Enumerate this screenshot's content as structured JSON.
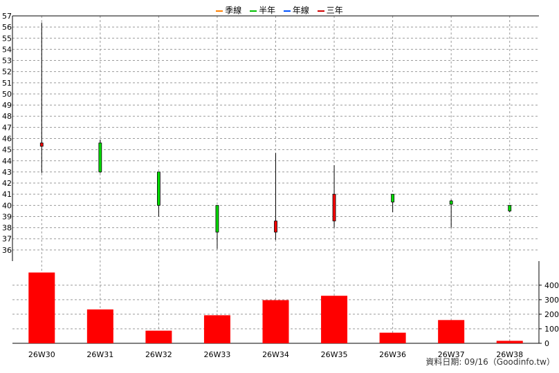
{
  "legend": [
    {
      "label": "季線",
      "color": "#ff8000"
    },
    {
      "label": "半年",
      "color": "#00c000"
    },
    {
      "label": "年線",
      "color": "#0050ff"
    },
    {
      "label": "三年",
      "color": "#d00000"
    }
  ],
  "footer": "資料日期: 09/16（Goodinfo.tw）",
  "colors": {
    "up": "#ff0000",
    "down": "#00dd00",
    "volume": "#ff0000",
    "grid": "#999999"
  },
  "chart_data": [
    {
      "type": "candlestick",
      "categories": [
        "26W30",
        "26W31",
        "26W32",
        "26W33",
        "26W34",
        "26W35",
        "26W36",
        "26W37",
        "26W38"
      ],
      "ylim": [
        35,
        57
      ],
      "yticks": [
        36,
        37,
        38,
        39,
        40,
        41,
        42,
        43,
        44,
        45,
        46,
        47,
        48,
        49,
        50,
        51,
        52,
        53,
        54,
        55,
        56,
        57
      ],
      "grid": true,
      "candles": [
        {
          "open": 45.3,
          "high": 56.4,
          "low": 42.9,
          "close": 45.6
        },
        {
          "open": 45.6,
          "high": 45.9,
          "low": 42.9,
          "close": 43.0
        },
        {
          "open": 43.0,
          "high": 43.0,
          "low": 39.0,
          "close": 40.0
        },
        {
          "open": 40.0,
          "high": 40.0,
          "low": 36.1,
          "close": 37.6
        },
        {
          "open": 37.6,
          "high": 44.7,
          "low": 36.9,
          "close": 38.6
        },
        {
          "open": 38.6,
          "high": 43.6,
          "low": 38.0,
          "close": 41.0
        },
        {
          "open": 41.0,
          "high": 41.0,
          "low": 39.4,
          "close": 40.3
        },
        {
          "open": 40.4,
          "high": 40.5,
          "low": 38.0,
          "close": 40.1
        },
        {
          "open": 40.0,
          "high": 40.0,
          "low": 39.4,
          "close": 39.5
        }
      ]
    },
    {
      "type": "bar",
      "categories": [
        "26W30",
        "26W31",
        "26W32",
        "26W33",
        "26W34",
        "26W35",
        "26W36",
        "26W37",
        "26W38"
      ],
      "values": [
        487,
        233,
        87,
        193,
        297,
        327,
        73,
        160,
        17
      ],
      "ylim": [
        0,
        480
      ],
      "yticks": [
        0,
        100,
        200,
        300,
        400
      ],
      "grid": true
    }
  ]
}
